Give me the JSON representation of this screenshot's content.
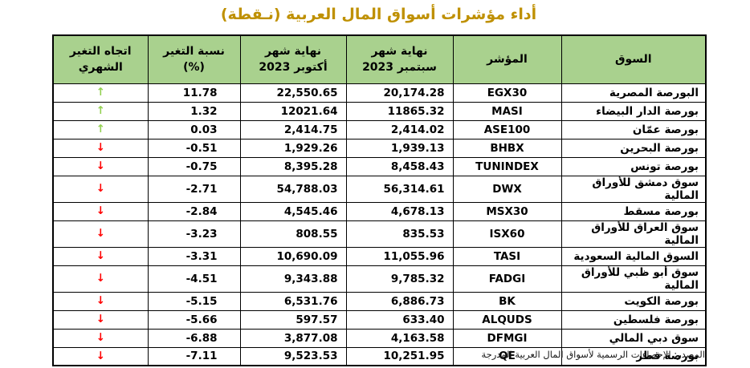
{
  "title": "أداء مؤشرات أسواق المال العربية (نـقطة)",
  "source_note": "المصدر: الإحصاءات الرسمية لأسواق المال العربية المدرجة",
  "icons": {
    "up_arrow": "↑",
    "down_arrow": "↓"
  },
  "colors": {
    "title_gold": "#BF9000",
    "header_green": "#A9D18E",
    "up_arrow_green": "#92D050",
    "down_arrow_red": "#FF0000",
    "border_black": "#000000"
  },
  "table": {
    "headers": {
      "market": "السوق",
      "index": "المؤشر",
      "sep_end": "نهاية شهر\nسبتمبر 2023",
      "oct_end": "نهاية شهر\nأكتوبر 2023",
      "pct_change": "نسبة التغير\n(%)",
      "trend": "اتجاه التغير\nالشهري"
    },
    "rows": [
      {
        "market": "البورصة المصرية",
        "index": "EGX30",
        "sep": "20,174.28",
        "oct": "22,550.65",
        "pct": "11.78",
        "trend": "up"
      },
      {
        "market": "بورصة الدار البيضاء",
        "index": "MASI",
        "sep": "11865.32",
        "oct": "12021.64",
        "pct": "1.32",
        "trend": "up"
      },
      {
        "market": "بورصة عمّان",
        "index": "ASE100",
        "sep": "2,414.02",
        "oct": "2,414.75",
        "pct": "0.03",
        "trend": "up"
      },
      {
        "market": "بورصة البحرين",
        "index": "BHBX",
        "sep": "1,939.13",
        "oct": "1,929.26",
        "pct": "-0.51",
        "trend": "down"
      },
      {
        "market": "بورصة تونس",
        "index": "TUNINDEX",
        "sep": "8,458.43",
        "oct": "8,395.28",
        "pct": "-0.75",
        "trend": "down"
      },
      {
        "market": "سوق دمشق للأوراق المالية",
        "index": "DWX",
        "sep": "56,314.61",
        "oct": "54,788.03",
        "pct": "-2.71",
        "trend": "down"
      },
      {
        "market": "بورصة مسقط",
        "index": "MSX30",
        "sep": "4,678.13",
        "oct": "4,545.46",
        "pct": "-2.84",
        "trend": "down"
      },
      {
        "market": "سوق العراق للأوراق المالية",
        "index": "ISX60",
        "sep": "835.53",
        "oct": "808.55",
        "pct": "-3.23",
        "trend": "down"
      },
      {
        "market": "السوق المالية السعودية",
        "index": "TASI",
        "sep": "11,055.96",
        "oct": "10,690.09",
        "pct": "-3.31",
        "trend": "down"
      },
      {
        "market": "سوق أبو ظبي للأوراق المالية",
        "index": "FADGI",
        "sep": "9,785.32",
        "oct": "9,343.88",
        "pct": "-4.51",
        "trend": "down"
      },
      {
        "market": "بورصة الكويت",
        "index": "BK",
        "sep": "6,886.73",
        "oct": "6,531.76",
        "pct": "-5.15",
        "trend": "down"
      },
      {
        "market": "بورصة فلسطين",
        "index": "ALQUDS",
        "sep": "633.40",
        "oct": "597.57",
        "pct": "-5.66",
        "trend": "down"
      },
      {
        "market": "سوق دبي المالي",
        "index": "DFMGI",
        "sep": "4,163.58",
        "oct": "3,877.08",
        "pct": "-6.88",
        "trend": "down"
      },
      {
        "market": "بورصة قطر",
        "index": "QE",
        "sep": "10,251.95",
        "oct": "9,523.53",
        "pct": "-7.11",
        "trend": "down"
      }
    ]
  }
}
